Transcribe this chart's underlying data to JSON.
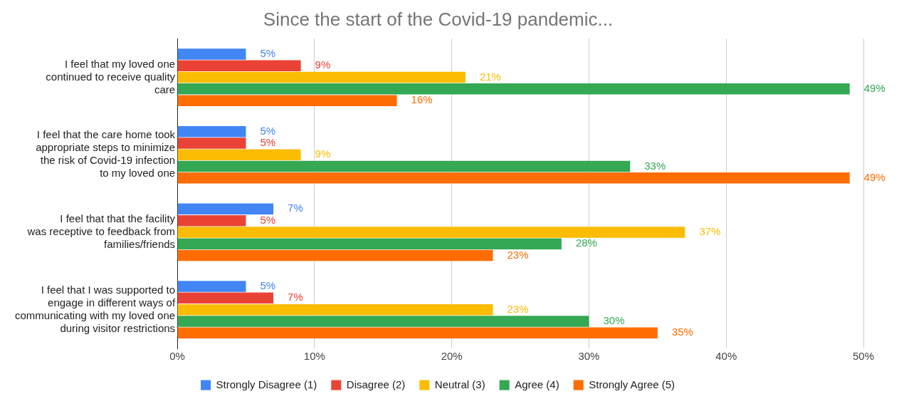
{
  "chart_data": {
    "type": "bar",
    "orientation": "horizontal",
    "title": "Since the start of the Covid-19 pandemic...",
    "categories": [
      "I feel that my loved one continued to receive quality care",
      "I feel that the care home took appropriate steps to minimize the risk of Covid-19 infection to my loved one",
      "I feel that that the facility was receptive to feedback from families/friends",
      "I feel that I was supported to engage in different ways of communicating with my loved one during visitor restrictions"
    ],
    "series": [
      {
        "name": "Strongly Disagree (1)",
        "color": "#4285f4",
        "values": [
          5,
          5,
          7,
          5
        ],
        "value_labels": [
          "5%",
          "5%",
          "7%",
          "5%"
        ]
      },
      {
        "name": "Disagree (2)",
        "color": "#ea4335",
        "values": [
          9,
          5,
          5,
          7
        ],
        "value_labels": [
          "9%",
          "5%",
          "5%",
          "7%"
        ]
      },
      {
        "name": "Neutral (3)",
        "color": "#fbbc04",
        "values": [
          21,
          9,
          37,
          23
        ],
        "value_labels": [
          "21%",
          "9%",
          "37%",
          "23%"
        ]
      },
      {
        "name": "Agree (4)",
        "color": "#34a853",
        "values": [
          49,
          33,
          28,
          30
        ],
        "value_labels": [
          "49%",
          "33%",
          "28%",
          "30%"
        ]
      },
      {
        "name": "Strongly Agree (5)",
        "color": "#ff6d01",
        "values": [
          16,
          49,
          23,
          35
        ],
        "value_labels": [
          "16%",
          "49%",
          "23%",
          "35%"
        ]
      }
    ],
    "xlim": [
      0,
      50
    ],
    "xticks": [
      {
        "value": 0,
        "label": "0%"
      },
      {
        "value": 10,
        "label": "10%"
      },
      {
        "value": 20,
        "label": "20%"
      },
      {
        "value": 30,
        "label": "30%"
      },
      {
        "value": 40,
        "label": "40%"
      },
      {
        "value": 50,
        "label": "50%"
      }
    ],
    "grid": "x",
    "legend": "bottom"
  }
}
